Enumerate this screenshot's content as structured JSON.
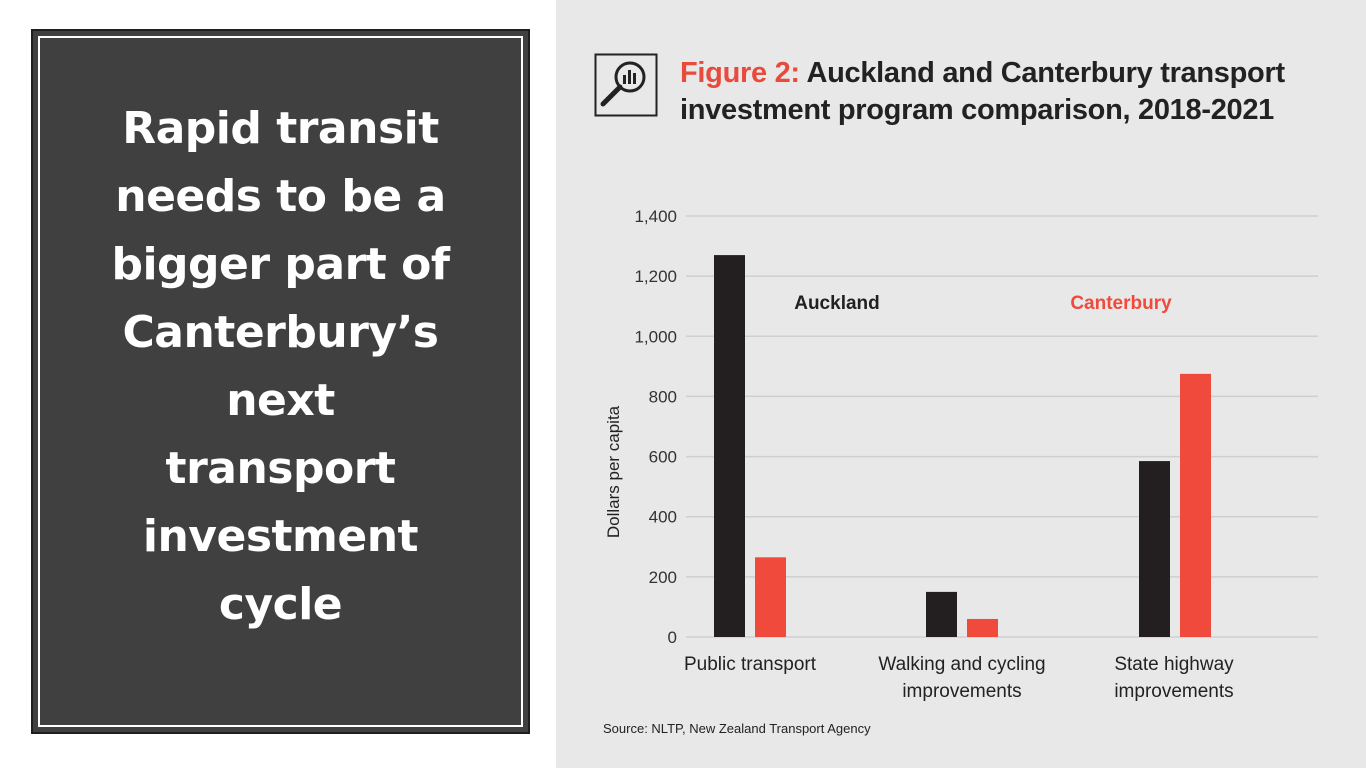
{
  "slide": {
    "headline_lines": [
      "Rapid transit",
      "needs to be a",
      "bigger part of",
      "Canterbury’s",
      "next",
      "transport",
      "investment",
      "cycle"
    ]
  },
  "figure": {
    "title_prefix": "Figure 2:",
    "title_line1": "Auckland and Canterbury transport",
    "title_line2": "investment program comparison, 2018-2021",
    "source": "Source: NLTP, New Zealand Transport Agency"
  },
  "colors": {
    "auckland": "#231f20",
    "canterbury": "#ef4a3b",
    "accent": "#e84a3c"
  },
  "chart_data": {
    "type": "bar",
    "ylabel": "Dollars per capita",
    "ylim": [
      0,
      1400
    ],
    "yticks": [
      0,
      200,
      400,
      600,
      800,
      1000,
      1200,
      1400
    ],
    "ytick_labels": [
      "0",
      "200",
      "400",
      "600",
      "800",
      "1,000",
      "1,200",
      "1,400"
    ],
    "grid": true,
    "categories": [
      [
        "Public transport"
      ],
      [
        "Walking and cycling",
        "improvements"
      ],
      [
        "State highway",
        "improvements"
      ]
    ],
    "series": [
      {
        "name": "Auckland",
        "values": [
          1270,
          150,
          585
        ]
      },
      {
        "name": "Canterbury",
        "values": [
          265,
          60,
          875
        ]
      }
    ]
  }
}
